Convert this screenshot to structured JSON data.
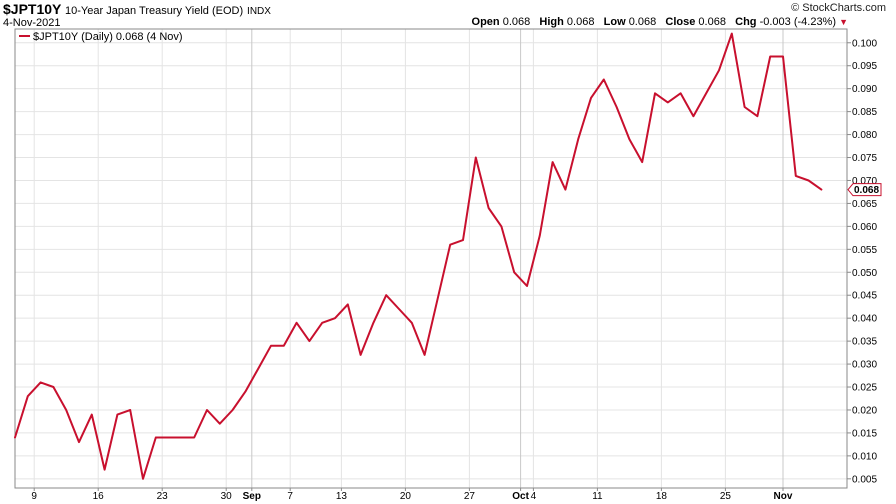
{
  "header": {
    "symbol": "$JPT10Y",
    "description": "10-Year Japan Treasury Yield (EOD)",
    "exchange": "INDX",
    "date": "4-Nov-2021",
    "brand": "© StockCharts.com",
    "open_label": "Open",
    "open_value": "0.068",
    "high_label": "High",
    "high_value": "0.068",
    "low_label": "Low",
    "low_value": "0.068",
    "close_label": "Close",
    "close_value": "0.068",
    "chg_label": "Chg",
    "chg_value": "-0.003 (-4.23%)",
    "chg_icon": "down-triangle-icon"
  },
  "legend": {
    "text": "$JPT10Y (Daily) 0.068 (4 Nov)",
    "color": "#c8102e"
  },
  "chart_data": {
    "type": "line",
    "series": [
      {
        "name": "$JPT10Y (Daily)",
        "color": "#c8102e",
        "values": [
          0.014,
          0.023,
          0.026,
          0.025,
          0.02,
          0.013,
          0.019,
          0.007,
          0.019,
          0.02,
          0.005,
          0.014,
          0.014,
          0.014,
          0.014,
          0.02,
          0.017,
          0.02,
          0.024,
          0.029,
          0.034,
          0.034,
          0.039,
          0.035,
          0.039,
          0.04,
          0.043,
          0.032,
          0.039,
          0.045,
          0.042,
          0.039,
          0.032,
          0.044,
          0.056,
          0.057,
          0.075,
          0.064,
          0.06,
          0.05,
          0.047,
          0.058,
          0.074,
          0.068,
          0.079,
          0.088,
          0.092,
          0.086,
          0.079,
          0.074,
          0.089,
          0.087,
          0.089,
          0.084,
          0.089,
          0.094,
          0.102,
          0.086,
          0.084,
          0.097,
          0.097,
          0.071,
          0.07,
          0.068
        ]
      }
    ],
    "x_tick_labels": [
      {
        "label": "9",
        "index": 1.5,
        "bold": false
      },
      {
        "label": "16",
        "index": 6.5,
        "bold": false
      },
      {
        "label": "23",
        "index": 11.5,
        "bold": false
      },
      {
        "label": "30",
        "index": 16.5,
        "bold": false
      },
      {
        "label": "Sep",
        "index": 18.5,
        "bold": true
      },
      {
        "label": "7",
        "index": 21.5,
        "bold": false
      },
      {
        "label": "13",
        "index": 25.5,
        "bold": false
      },
      {
        "label": "20",
        "index": 30.5,
        "bold": false
      },
      {
        "label": "27",
        "index": 35.5,
        "bold": false
      },
      {
        "label": "Oct",
        "index": 39.5,
        "bold": true
      },
      {
        "label": "4",
        "index": 40.5,
        "bold": false
      },
      {
        "label": "11",
        "index": 45.5,
        "bold": false
      },
      {
        "label": "18",
        "index": 50.5,
        "bold": false
      },
      {
        "label": "25",
        "index": 55.5,
        "bold": false
      },
      {
        "label": "Nov",
        "index": 60,
        "bold": true
      }
    ],
    "month_divider_indices": [
      18.5,
      39.5,
      60
    ],
    "ylim": [
      0.003,
      0.103
    ],
    "y_ticks": [
      "0.005",
      "0.010",
      "0.015",
      "0.020",
      "0.025",
      "0.030",
      "0.035",
      "0.040",
      "0.045",
      "0.050",
      "0.055",
      "0.060",
      "0.065",
      "0.070",
      "0.075",
      "0.080",
      "0.085",
      "0.090",
      "0.095",
      "0.100"
    ],
    "last_value_label": "0.068",
    "grid": true,
    "axis_position": "right"
  }
}
